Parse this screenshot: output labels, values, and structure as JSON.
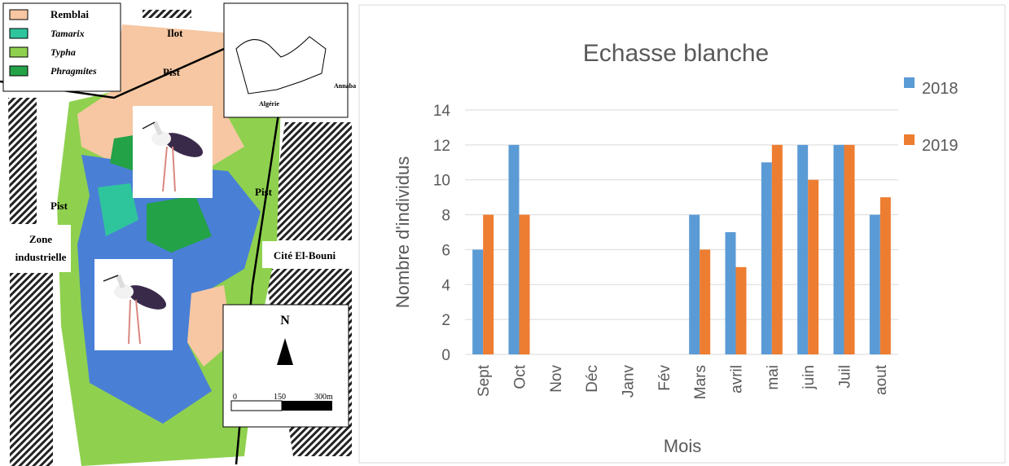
{
  "map": {
    "legend": [
      {
        "label": "Remblai",
        "color": "#f6c7a2"
      },
      {
        "label": "Tamarix",
        "color": "#2fc59c"
      },
      {
        "label": "Typha",
        "color": "#8fd14f"
      },
      {
        "label": "Phragmites",
        "color": "#23a247"
      }
    ],
    "labels": {
      "ilot": "Ilot",
      "pist_top": "Pist",
      "pist_right": "Pist",
      "pist_left": "Pist",
      "zone": [
        "Zone",
        "industrielle"
      ],
      "cite": "Cité El-Bouni",
      "annaba": "Annaba",
      "algerie": "Algérie",
      "north": "N"
    },
    "scale": [
      "0",
      "150",
      "300m"
    ]
  },
  "chart_data": {
    "type": "bar",
    "title": "Echasse blanche",
    "x_label": "Mois",
    "y_label": "Nombre d'individus",
    "categories": [
      "Sept",
      "Oct",
      "Nov",
      "Déc",
      "Janv",
      "Fév",
      "Mars",
      "avril",
      "mai",
      "juin",
      "Juil",
      "aout"
    ],
    "series": [
      {
        "name": "2018",
        "color": "#5b9bd5",
        "values": [
          6,
          12,
          null,
          null,
          null,
          null,
          8,
          7,
          11,
          12,
          12,
          8
        ]
      },
      {
        "name": "2019",
        "color": "#ed7d31",
        "values": [
          8,
          8,
          null,
          null,
          null,
          null,
          6,
          5,
          12,
          10,
          12,
          9
        ]
      }
    ],
    "ylim": [
      0,
      14
    ],
    "yticks": [
      0,
      2,
      4,
      6,
      8,
      10,
      12,
      14
    ],
    "grid": true,
    "legend": "right"
  }
}
